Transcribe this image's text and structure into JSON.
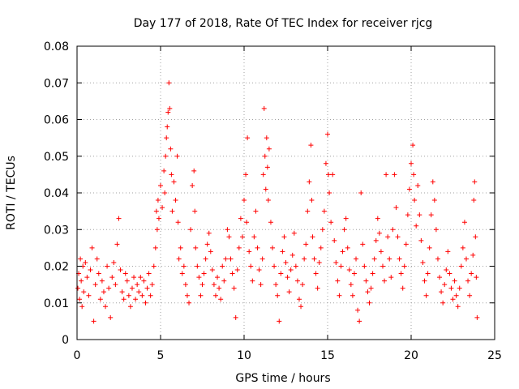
{
  "chart_data": {
    "type": "scatter",
    "title": "Day 177 of 2018, Rate Of TEC Index for receiver rjcg",
    "xlabel": "GPS time / hours",
    "ylabel": "ROTI / TECUs",
    "xlim": [
      0,
      25
    ],
    "ylim": [
      0,
      0.08
    ],
    "x_ticks": [
      0,
      5,
      10,
      15,
      20,
      25
    ],
    "x_tick_labels": [
      "0",
      "5",
      "10",
      "15",
      "20",
      "25"
    ],
    "y_ticks": [
      0,
      0.01,
      0.02,
      0.03,
      0.04,
      0.05,
      0.06,
      0.07,
      0.08
    ],
    "y_tick_labels": [
      "0",
      "0.01",
      "0.02",
      "0.03",
      "0.04",
      "0.05",
      "0.06",
      "0.07",
      "0.08"
    ],
    "grid": true,
    "marker": "plus",
    "marker_color": "#ff0000",
    "series": [
      {
        "name": "ROTI",
        "points": [
          [
            0.05,
            0.014
          ],
          [
            0.1,
            0.018
          ],
          [
            0.15,
            0.011
          ],
          [
            0.2,
            0.022
          ],
          [
            0.25,
            0.016
          ],
          [
            0.3,
            0.009
          ],
          [
            0.35,
            0.02
          ],
          [
            0.4,
            0.013
          ],
          [
            0.5,
            0.021
          ],
          [
            0.6,
            0.017
          ],
          [
            0.7,
            0.012
          ],
          [
            0.8,
            0.019
          ],
          [
            0.9,
            0.025
          ],
          [
            1.0,
            0.005
          ],
          [
            1.1,
            0.015
          ],
          [
            1.2,
            0.022
          ],
          [
            1.3,
            0.018
          ],
          [
            1.4,
            0.011
          ],
          [
            1.5,
            0.016
          ],
          [
            1.6,
            0.013
          ],
          [
            1.7,
            0.009
          ],
          [
            1.8,
            0.02
          ],
          [
            1.9,
            0.014
          ],
          [
            2.0,
            0.006
          ],
          [
            2.1,
            0.017
          ],
          [
            2.2,
            0.021
          ],
          [
            2.3,
            0.015
          ],
          [
            2.4,
            0.026
          ],
          [
            2.5,
            0.033
          ],
          [
            2.6,
            0.019
          ],
          [
            2.7,
            0.013
          ],
          [
            2.8,
            0.011
          ],
          [
            2.9,
            0.018
          ],
          [
            3.0,
            0.016
          ],
          [
            3.1,
            0.012
          ],
          [
            3.2,
            0.009
          ],
          [
            3.3,
            0.014
          ],
          [
            3.4,
            0.017
          ],
          [
            3.5,
            0.011
          ],
          [
            3.6,
            0.015
          ],
          [
            3.7,
            0.013
          ],
          [
            3.8,
            0.017
          ],
          [
            3.9,
            0.012
          ],
          [
            4.0,
            0.016
          ],
          [
            4.1,
            0.01
          ],
          [
            4.2,
            0.014
          ],
          [
            4.3,
            0.018
          ],
          [
            4.4,
            0.012
          ],
          [
            4.5,
            0.015
          ],
          [
            4.6,
            0.02
          ],
          [
            4.7,
            0.025
          ],
          [
            4.75,
            0.035
          ],
          [
            4.8,
            0.03
          ],
          [
            4.85,
            0.038
          ],
          [
            4.9,
            0.033
          ],
          [
            5.0,
            0.042
          ],
          [
            5.1,
            0.036
          ],
          [
            5.2,
            0.046
          ],
          [
            5.25,
            0.04
          ],
          [
            5.3,
            0.05
          ],
          [
            5.35,
            0.055
          ],
          [
            5.4,
            0.058
          ],
          [
            5.45,
            0.062
          ],
          [
            5.5,
            0.07
          ],
          [
            5.55,
            0.063
          ],
          [
            5.6,
            0.052
          ],
          [
            5.65,
            0.045
          ],
          [
            5.7,
            0.035
          ],
          [
            5.8,
            0.043
          ],
          [
            5.9,
            0.038
          ],
          [
            6.0,
            0.05
          ],
          [
            6.05,
            0.032
          ],
          [
            6.1,
            0.022
          ],
          [
            6.2,
            0.025
          ],
          [
            6.3,
            0.018
          ],
          [
            6.4,
            0.02
          ],
          [
            6.5,
            0.015
          ],
          [
            6.6,
            0.012
          ],
          [
            6.7,
            0.01
          ],
          [
            6.8,
            0.03
          ],
          [
            6.9,
            0.042
          ],
          [
            7.0,
            0.046
          ],
          [
            7.05,
            0.035
          ],
          [
            7.1,
            0.025
          ],
          [
            7.2,
            0.02
          ],
          [
            7.3,
            0.017
          ],
          [
            7.4,
            0.012
          ],
          [
            7.5,
            0.015
          ],
          [
            7.6,
            0.018
          ],
          [
            7.7,
            0.022
          ],
          [
            7.8,
            0.026
          ],
          [
            7.9,
            0.029
          ],
          [
            8.0,
            0.024
          ],
          [
            8.1,
            0.019
          ],
          [
            8.2,
            0.015
          ],
          [
            8.3,
            0.012
          ],
          [
            8.4,
            0.017
          ],
          [
            8.5,
            0.014
          ],
          [
            8.6,
            0.011
          ],
          [
            8.7,
            0.02
          ],
          [
            8.8,
            0.016
          ],
          [
            8.9,
            0.022
          ],
          [
            9.0,
            0.03
          ],
          [
            9.1,
            0.028
          ],
          [
            9.2,
            0.022
          ],
          [
            9.3,
            0.018
          ],
          [
            9.4,
            0.014
          ],
          [
            9.5,
            0.006
          ],
          [
            9.6,
            0.019
          ],
          [
            9.7,
            0.025
          ],
          [
            9.8,
            0.033
          ],
          [
            9.9,
            0.028
          ],
          [
            10.0,
            0.038
          ],
          [
            10.1,
            0.045
          ],
          [
            10.15,
            0.032
          ],
          [
            10.2,
            0.055
          ],
          [
            10.3,
            0.024
          ],
          [
            10.4,
            0.02
          ],
          [
            10.5,
            0.016
          ],
          [
            10.6,
            0.028
          ],
          [
            10.7,
            0.035
          ],
          [
            10.8,
            0.025
          ],
          [
            10.9,
            0.019
          ],
          [
            11.0,
            0.015
          ],
          [
            11.1,
            0.022
          ],
          [
            11.15,
            0.045
          ],
          [
            11.2,
            0.063
          ],
          [
            11.25,
            0.05
          ],
          [
            11.3,
            0.041
          ],
          [
            11.35,
            0.055
          ],
          [
            11.4,
            0.047
          ],
          [
            11.45,
            0.038
          ],
          [
            11.5,
            0.052
          ],
          [
            11.6,
            0.032
          ],
          [
            11.7,
            0.025
          ],
          [
            11.8,
            0.02
          ],
          [
            11.9,
            0.015
          ],
          [
            12.0,
            0.012
          ],
          [
            12.1,
            0.005
          ],
          [
            12.2,
            0.018
          ],
          [
            12.3,
            0.024
          ],
          [
            12.4,
            0.028
          ],
          [
            12.5,
            0.021
          ],
          [
            12.6,
            0.017
          ],
          [
            12.7,
            0.013
          ],
          [
            12.8,
            0.019
          ],
          [
            12.9,
            0.023
          ],
          [
            13.0,
            0.029
          ],
          [
            13.1,
            0.02
          ],
          [
            13.2,
            0.016
          ],
          [
            13.3,
            0.011
          ],
          [
            13.4,
            0.009
          ],
          [
            13.5,
            0.015
          ],
          [
            13.6,
            0.022
          ],
          [
            13.7,
            0.026
          ],
          [
            13.8,
            0.035
          ],
          [
            13.9,
            0.043
          ],
          [
            14.0,
            0.053
          ],
          [
            14.05,
            0.038
          ],
          [
            14.1,
            0.028
          ],
          [
            14.2,
            0.022
          ],
          [
            14.3,
            0.018
          ],
          [
            14.4,
            0.014
          ],
          [
            14.5,
            0.021
          ],
          [
            14.6,
            0.025
          ],
          [
            14.7,
            0.03
          ],
          [
            14.8,
            0.035
          ],
          [
            14.9,
            0.048
          ],
          [
            15.0,
            0.056
          ],
          [
            15.05,
            0.045
          ],
          [
            15.1,
            0.04
          ],
          [
            15.2,
            0.032
          ],
          [
            15.3,
            0.045
          ],
          [
            15.4,
            0.027
          ],
          [
            15.5,
            0.021
          ],
          [
            15.6,
            0.016
          ],
          [
            15.7,
            0.012
          ],
          [
            15.8,
            0.02
          ],
          [
            15.9,
            0.024
          ],
          [
            16.0,
            0.03
          ],
          [
            16.1,
            0.033
          ],
          [
            16.2,
            0.025
          ],
          [
            16.3,
            0.019
          ],
          [
            16.4,
            0.015
          ],
          [
            16.5,
            0.012
          ],
          [
            16.6,
            0.018
          ],
          [
            16.7,
            0.022
          ],
          [
            16.8,
            0.008
          ],
          [
            16.9,
            0.005
          ],
          [
            17.0,
            0.04
          ],
          [
            17.1,
            0.026
          ],
          [
            17.2,
            0.02
          ],
          [
            17.3,
            0.016
          ],
          [
            17.4,
            0.013
          ],
          [
            17.5,
            0.01
          ],
          [
            17.6,
            0.014
          ],
          [
            17.7,
            0.018
          ],
          [
            17.8,
            0.022
          ],
          [
            17.9,
            0.027
          ],
          [
            18.0,
            0.033
          ],
          [
            18.1,
            0.029
          ],
          [
            18.2,
            0.024
          ],
          [
            18.3,
            0.02
          ],
          [
            18.4,
            0.016
          ],
          [
            18.5,
            0.045
          ],
          [
            18.6,
            0.028
          ],
          [
            18.7,
            0.022
          ],
          [
            18.8,
            0.017
          ],
          [
            18.9,
            0.03
          ],
          [
            19.0,
            0.045
          ],
          [
            19.1,
            0.036
          ],
          [
            19.2,
            0.028
          ],
          [
            19.3,
            0.022
          ],
          [
            19.4,
            0.018
          ],
          [
            19.5,
            0.014
          ],
          [
            19.6,
            0.02
          ],
          [
            19.7,
            0.026
          ],
          [
            19.8,
            0.034
          ],
          [
            19.9,
            0.041
          ],
          [
            20.0,
            0.048
          ],
          [
            20.1,
            0.053
          ],
          [
            20.15,
            0.045
          ],
          [
            20.2,
            0.038
          ],
          [
            20.3,
            0.031
          ],
          [
            20.4,
            0.042
          ],
          [
            20.5,
            0.034
          ],
          [
            20.6,
            0.027
          ],
          [
            20.7,
            0.021
          ],
          [
            20.8,
            0.016
          ],
          [
            20.9,
            0.012
          ],
          [
            21.0,
            0.018
          ],
          [
            21.1,
            0.025
          ],
          [
            21.2,
            0.034
          ],
          [
            21.3,
            0.043
          ],
          [
            21.4,
            0.038
          ],
          [
            21.5,
            0.03
          ],
          [
            21.6,
            0.022
          ],
          [
            21.7,
            0.017
          ],
          [
            21.8,
            0.013
          ],
          [
            21.9,
            0.01
          ],
          [
            22.0,
            0.015
          ],
          [
            22.1,
            0.019
          ],
          [
            22.2,
            0.024
          ],
          [
            22.3,
            0.018
          ],
          [
            22.4,
            0.014
          ],
          [
            22.5,
            0.011
          ],
          [
            22.6,
            0.016
          ],
          [
            22.7,
            0.012
          ],
          [
            22.8,
            0.009
          ],
          [
            22.9,
            0.014
          ],
          [
            23.0,
            0.02
          ],
          [
            23.1,
            0.025
          ],
          [
            23.2,
            0.032
          ],
          [
            23.3,
            0.022
          ],
          [
            23.4,
            0.016
          ],
          [
            23.5,
            0.012
          ],
          [
            23.6,
            0.018
          ],
          [
            23.7,
            0.023
          ],
          [
            23.75,
            0.038
          ],
          [
            23.8,
            0.043
          ],
          [
            23.85,
            0.028
          ],
          [
            23.9,
            0.017
          ],
          [
            23.95,
            0.006
          ]
        ]
      }
    ]
  }
}
